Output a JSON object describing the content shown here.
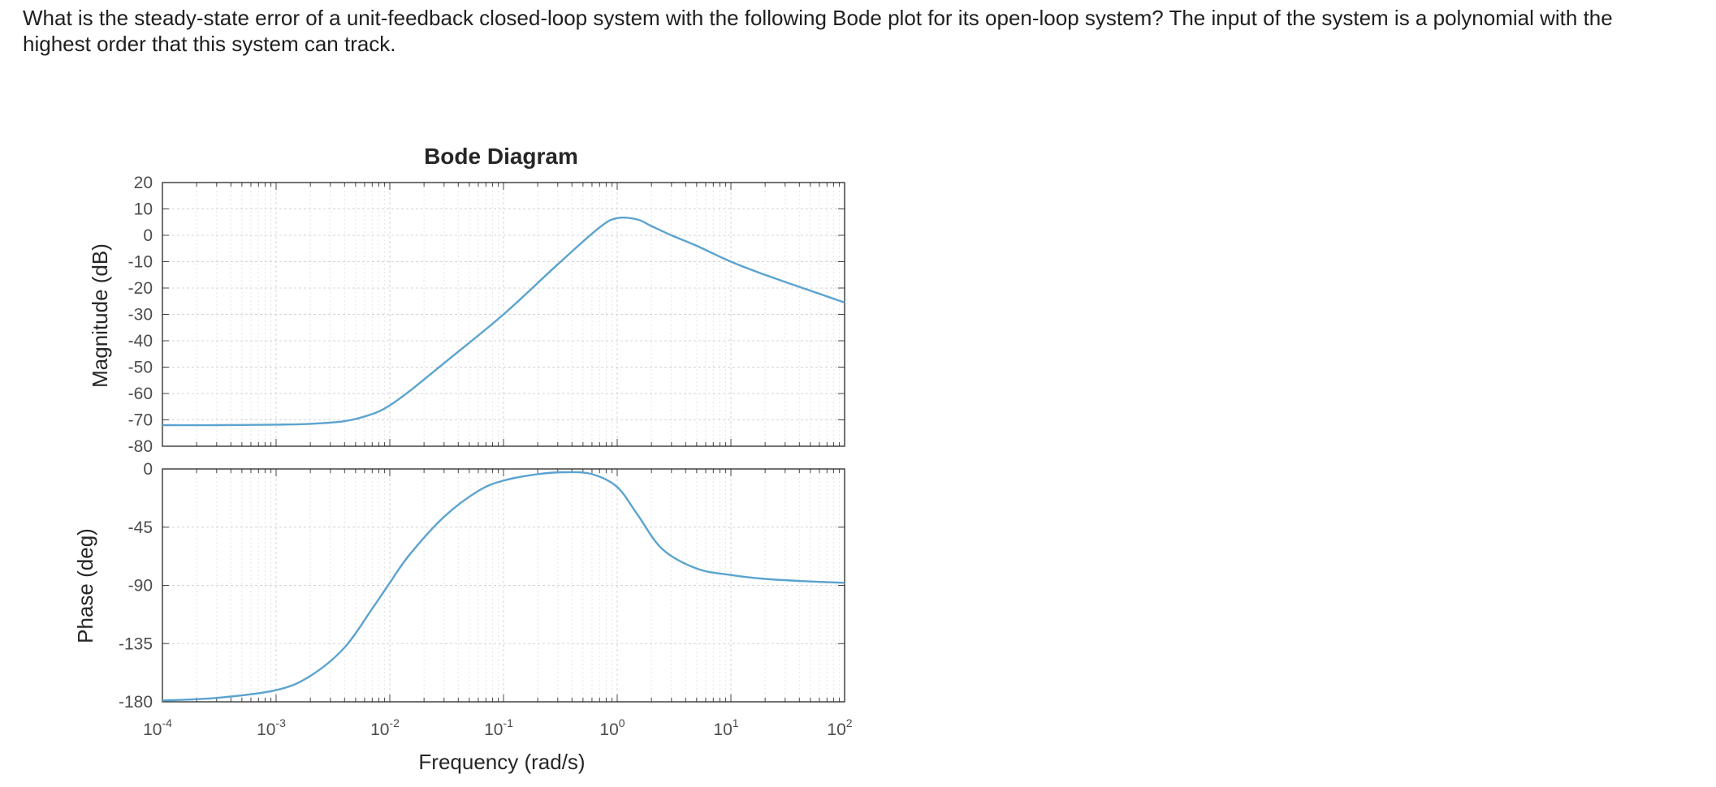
{
  "question": {
    "line1": "What is the steady-state error of a unit-feedback closed-loop system with the following Bode plot for its open-loop system? The input of the system is a polynomial with the",
    "line2": "highest order that this system can track."
  },
  "chart_data": {
    "type": "line",
    "title": "Bode Diagram",
    "xlabel": "Frequency (rad/s)",
    "x_scale": "log",
    "xlim": [
      0.0001,
      100
    ],
    "x_ticks": [
      {
        "base": "10",
        "exp": "-4"
      },
      {
        "base": "10",
        "exp": "-3"
      },
      {
        "base": "10",
        "exp": "-2"
      },
      {
        "base": "10",
        "exp": "-1"
      },
      {
        "base": "10",
        "exp": "0"
      },
      {
        "base": "10",
        "exp": "1"
      },
      {
        "base": "10",
        "exp": "2"
      }
    ],
    "grid": true,
    "line_color": "#5ba3cf",
    "magnitude": {
      "ylabel": "Magnitude (dB)",
      "ylim": [
        -80,
        20
      ],
      "yticks": [
        "20",
        "10",
        "0",
        "-10",
        "-20",
        "-30",
        "-40",
        "-50",
        "-60",
        "-70",
        "-80"
      ],
      "x": [
        0.0001,
        0.0003,
        0.001,
        0.002,
        0.004,
        0.007,
        0.01,
        0.015,
        0.03,
        0.1,
        0.3,
        0.7,
        1.0,
        1.5,
        2,
        3,
        5,
        10,
        20,
        50,
        100
      ],
      "y": [
        -72,
        -72,
        -71.8,
        -71.5,
        -70.5,
        -67.8,
        -64.5,
        -59,
        -48.5,
        -30,
        -11,
        3,
        6.5,
        6,
        3.5,
        0,
        -4,
        -10,
        -15,
        -21,
        -25.5
      ]
    },
    "phase": {
      "ylabel": "Phase (deg)",
      "ylim": [
        -180,
        0
      ],
      "yticks": [
        "0",
        "-45",
        "-90",
        "-135",
        "-180"
      ],
      "x": [
        0.0001,
        0.0003,
        0.001,
        0.002,
        0.004,
        0.007,
        0.01,
        0.015,
        0.03,
        0.06,
        0.1,
        0.2,
        0.35,
        0.6,
        1.0,
        1.5,
        2.5,
        5,
        10,
        20,
        50,
        100
      ],
      "y": [
        -179,
        -177,
        -171,
        -160,
        -138,
        -108,
        -88,
        -66,
        -37,
        -17,
        -9,
        -4,
        -2.5,
        -4,
        -14,
        -35,
        -62,
        -77,
        -82,
        -85,
        -87,
        -88
      ]
    }
  }
}
